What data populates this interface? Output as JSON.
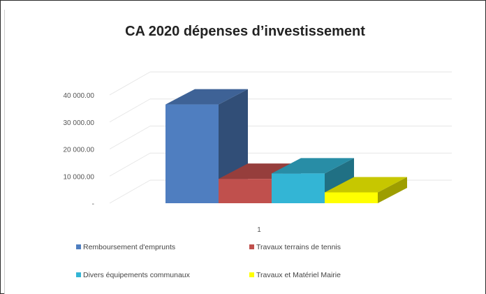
{
  "chart_data": {
    "type": "bar",
    "title": "CA 2020 dépenses d’investissement",
    "categories": [
      "1"
    ],
    "series": [
      {
        "name": "Remboursement d'emprunts",
        "values": [
          36500
        ],
        "color": "#4F7EC0"
      },
      {
        "name": "Travaux terrains de tennis",
        "values": [
          9000
        ],
        "color": "#C0504D"
      },
      {
        "name": "Divers équipements communaux",
        "values": [
          11000
        ],
        "color": "#33B5D5"
      },
      {
        "name": "Travaux et Matériel Mairie",
        "values": [
          4000
        ],
        "color": "#FFFF00"
      }
    ],
    "y_ticks": [
      "-",
      "10 000.00",
      "20 000.00",
      "30 000.00",
      "40 000.00"
    ],
    "ylim": [
      0,
      40000
    ],
    "grid": true,
    "legend_position": "bottom",
    "three_d": true
  }
}
